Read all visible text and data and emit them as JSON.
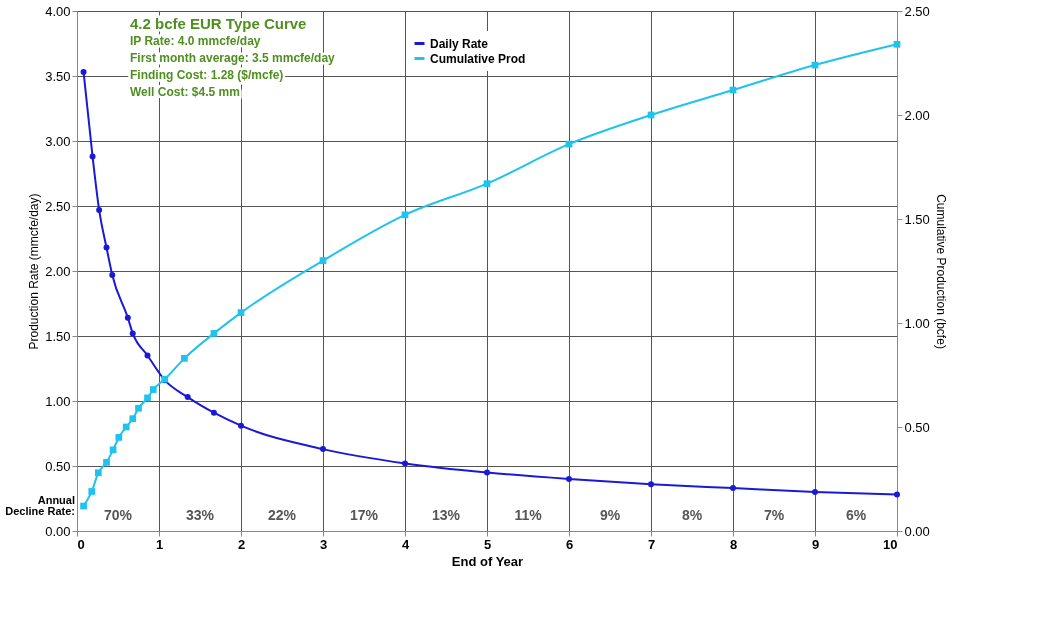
{
  "chart_data": {
    "type": "line",
    "title": "4.2 bcfe EUR Type Curve",
    "xlabel": "End of Year",
    "ylabel": "Production Rate (mmcfe/day)",
    "y2label": "Cumulative Production (bcfe)",
    "xlim": [
      0,
      10
    ],
    "xticks": [
      0,
      1,
      2,
      3,
      4,
      5,
      6,
      7,
      8,
      9,
      10
    ],
    "ylim": [
      0,
      4
    ],
    "yticks": [
      {
        "value": 0,
        "label": "0.00"
      },
      {
        "value": 0.5,
        "label": "0.50"
      },
      {
        "value": 1,
        "label": "1.00"
      },
      {
        "value": 1.5,
        "label": "1.50"
      },
      {
        "value": 2,
        "label": "2.00"
      },
      {
        "value": 2.5,
        "label": "2.50"
      },
      {
        "value": 3,
        "label": "3.00"
      },
      {
        "value": 3.5,
        "label": "3.50"
      },
      {
        "value": 4,
        "label": "4.00"
      }
    ],
    "y2lim": [
      0,
      2.5
    ],
    "y2ticks": [
      {
        "value": 0,
        "label": "0.00"
      },
      {
        "value": 0.5,
        "label": "0.50"
      },
      {
        "value": 1,
        "label": "1.00"
      },
      {
        "value": 1.5,
        "label": "1.50"
      },
      {
        "value": 2,
        "label": "2.00"
      },
      {
        "value": 2.5,
        "label": "2.50"
      }
    ],
    "grid": true,
    "legend": "top",
    "series": [
      {
        "name": "Daily Rate",
        "color": "#1a1ad6",
        "marker": "circle",
        "x": [
          0.08,
          0.19,
          0.27,
          0.36,
          0.43,
          0.62,
          0.68,
          0.86,
          1.07,
          1.35,
          1.67,
          2,
          3,
          4,
          5,
          6,
          7,
          8,
          9,
          10
        ],
        "values": [
          3.53,
          2.88,
          2.47,
          2.18,
          1.97,
          1.64,
          1.52,
          1.35,
          1.16,
          1.03,
          0.91,
          0.81,
          0.63,
          0.52,
          0.45,
          0.4,
          0.36,
          0.33,
          0.3,
          0.28
        ]
      },
      {
        "name": "Cumulative Prod",
        "color": "#1ec3ee",
        "marker": "square",
        "axis": "y2",
        "x": [
          0.08,
          0.18,
          0.26,
          0.36,
          0.44,
          0.51,
          0.6,
          0.68,
          0.75,
          0.86,
          0.93,
          1.07,
          1.31,
          1.67,
          2,
          3,
          4,
          5,
          6,
          7,
          8,
          9,
          10
        ],
        "values": [
          0.12,
          0.19,
          0.28,
          0.33,
          0.39,
          0.45,
          0.5,
          0.54,
          0.59,
          0.64,
          0.68,
          0.73,
          0.83,
          0.95,
          1.05,
          1.3,
          1.52,
          1.67,
          1.86,
          2.0,
          2.12,
          2.24,
          2.34
        ]
      }
    ],
    "annotations": [
      "IP Rate: 4.0 mmcfe/day",
      "First month average: 3.5 mmcfe/day",
      "Finding Cost:  1.28 ($/mcfe)",
      "Well Cost:  $4.5 mm",
      "Annual Decline Rate:",
      "70%",
      "33%",
      "22%",
      "17%",
      "13%",
      "11%",
      "9%",
      "8%",
      "7%",
      "6%"
    ]
  }
}
